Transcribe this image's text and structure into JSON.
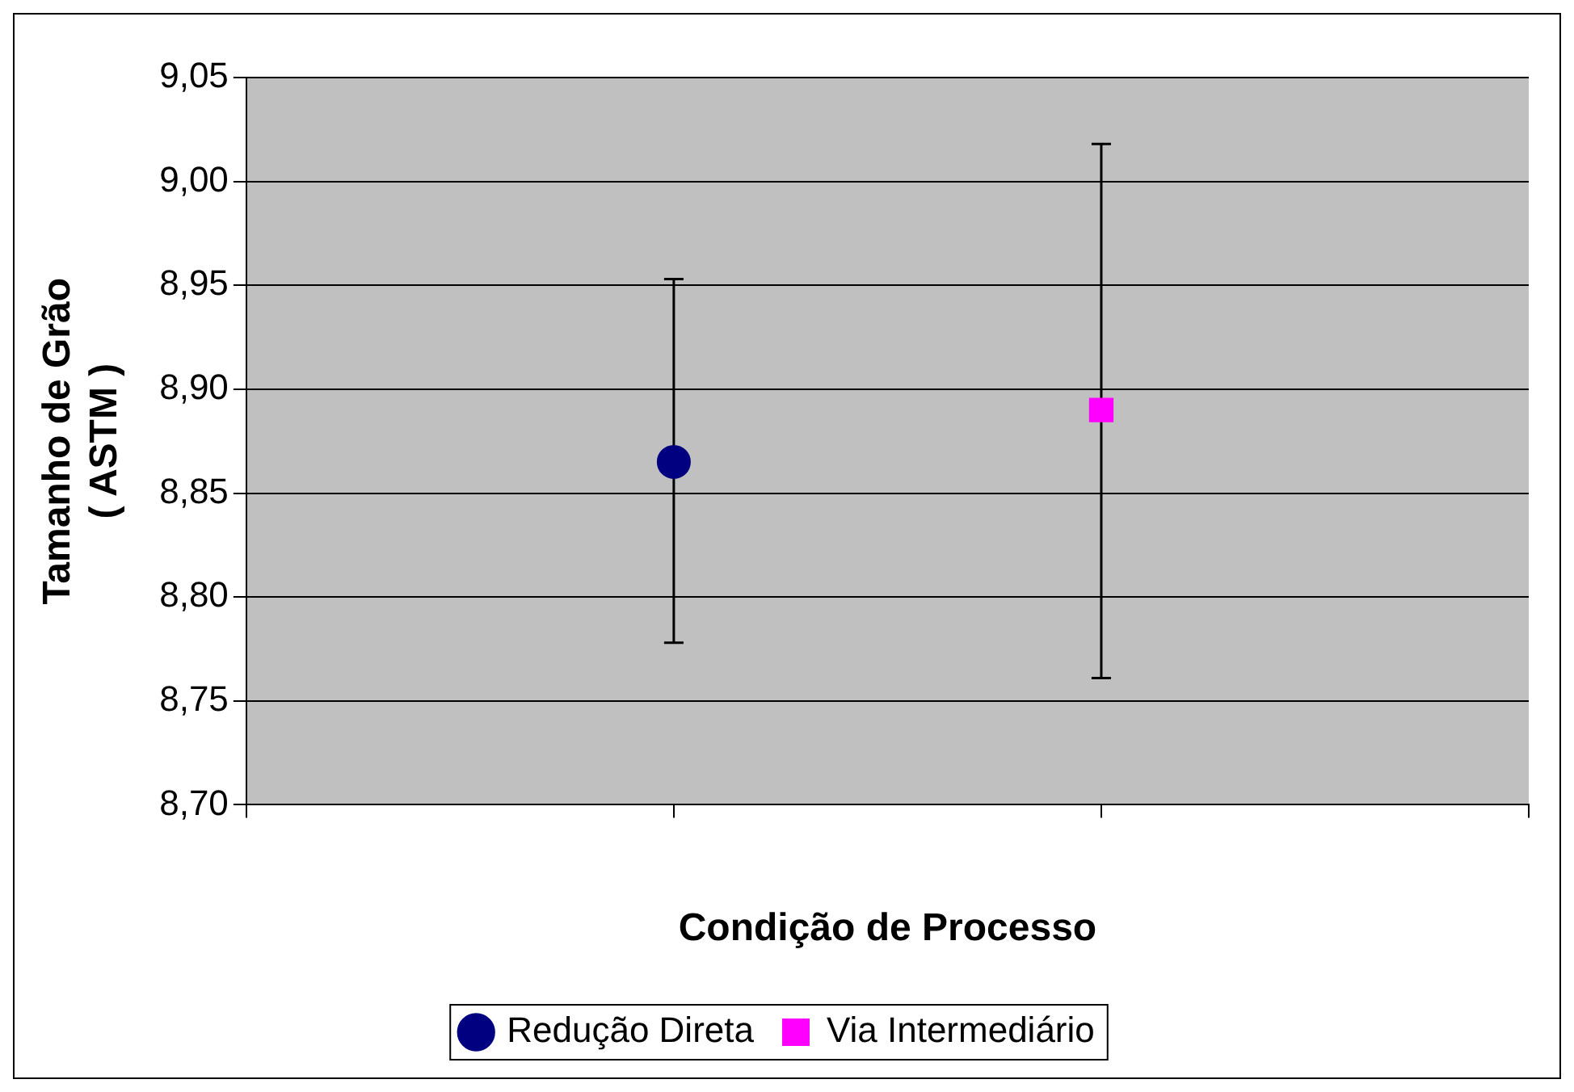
{
  "chart_data": {
    "type": "scatter",
    "xlabel": "Condição de Processo",
    "ylabel": "Tamanho de Grão\n( ASTM )",
    "categories": [
      null,
      null
    ],
    "ylim": [
      8.7,
      9.05
    ],
    "yticks": [
      {
        "value": 8.7,
        "label": "8,70"
      },
      {
        "value": 8.75,
        "label": "8,75"
      },
      {
        "value": 8.8,
        "label": "8,80"
      },
      {
        "value": 8.85,
        "label": "8,85"
      },
      {
        "value": 8.9,
        "label": "8,90"
      },
      {
        "value": 8.95,
        "label": "8,95"
      },
      {
        "value": 9.0,
        "label": "9,00"
      },
      {
        "value": 9.05,
        "label": "9,05"
      }
    ],
    "tick_labels": "y",
    "grid": "y",
    "legend": "bottom",
    "series": [
      {
        "name": "Redução Direta",
        "color": "#000080",
        "marker": "circle",
        "values": [
          8.865,
          null
        ],
        "errors": [
          [
            8.778,
            8.953
          ],
          null
        ]
      },
      {
        "name": "Via Intermediário",
        "color": "#ff00ff",
        "marker": "square",
        "values": [
          null,
          8.89
        ],
        "errors": [
          null,
          [
            8.761,
            9.018
          ]
        ]
      }
    ]
  }
}
